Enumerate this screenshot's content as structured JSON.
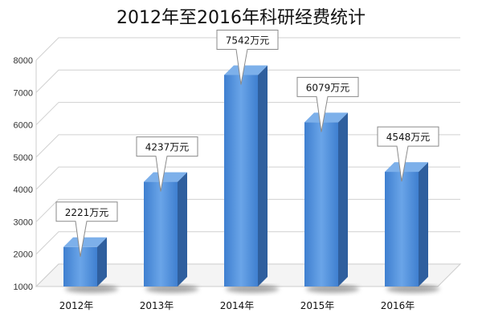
{
  "chart_data": {
    "type": "bar",
    "title": "2012年至2016年科研经费统计",
    "categories": [
      "2012年",
      "2013年",
      "2014年",
      "2015年",
      "2016年"
    ],
    "values": [
      2221,
      4237,
      7542,
      6079,
      4548
    ],
    "data_labels": [
      "2221万元",
      "4237万元",
      "7542万元",
      "6079万元",
      "4548万元"
    ],
    "ylim": [
      1000,
      8000
    ],
    "yticks": [
      "1000",
      "2000",
      "3000",
      "4000",
      "5000",
      "6000",
      "7000",
      "8000"
    ],
    "xlabel": "",
    "ylabel": "",
    "grid": true,
    "style": "3d",
    "colors": {
      "bar_front": "#4f8fdb",
      "bar_side": "#2f5f9e",
      "bar_top": "#7db0ea",
      "grid": "#d0d0d0"
    }
  }
}
